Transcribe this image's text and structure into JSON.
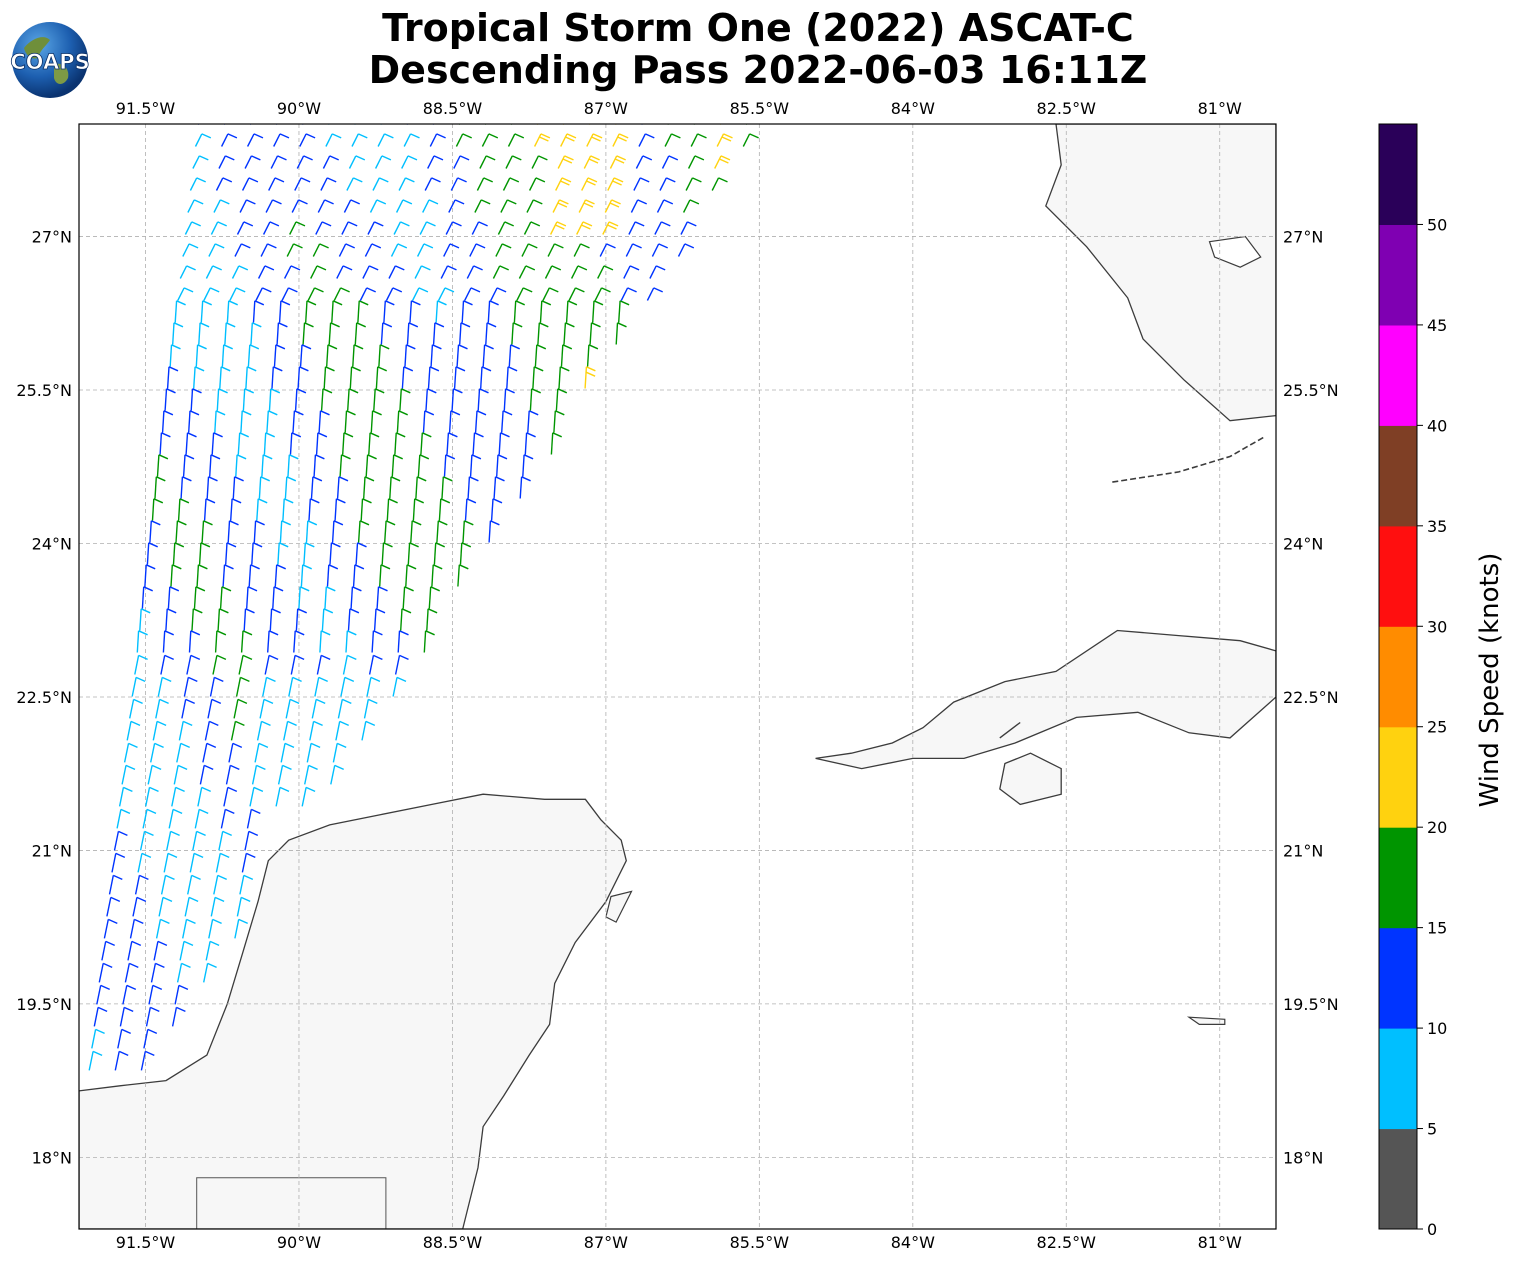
{
  "title": {
    "line1": "Tropical Storm One (2022) ASCAT-C",
    "line2": "Descending Pass 2022-06-03 16:11Z"
  },
  "logo": {
    "text": "COAPS",
    "icon": "globe-icon"
  },
  "map": {
    "type": "wind-barb-map",
    "extent": {
      "lon_min": -92.15,
      "lon_max": -80.45,
      "lat_min": 17.3,
      "lat_max": 28.1
    },
    "lon_ticks": [
      {
        "value": -91.5,
        "label": "91.5°W"
      },
      {
        "value": -90.0,
        "label": "90°W"
      },
      {
        "value": -88.5,
        "label": "88.5°W"
      },
      {
        "value": -87.0,
        "label": "87°W"
      },
      {
        "value": -85.5,
        "label": "85.5°W"
      },
      {
        "value": -84.0,
        "label": "84°W"
      },
      {
        "value": -82.5,
        "label": "82.5°W"
      },
      {
        "value": -81.0,
        "label": "81°W"
      }
    ],
    "lat_ticks": [
      {
        "value": 27.0,
        "label": "27°N"
      },
      {
        "value": 25.5,
        "label": "25.5°N"
      },
      {
        "value": 24.0,
        "label": "24°N"
      },
      {
        "value": 22.5,
        "label": "22.5°N"
      },
      {
        "value": 21.0,
        "label": "21°N"
      },
      {
        "value": 19.5,
        "label": "19.5°N"
      },
      {
        "value": 18.0,
        "label": "18°N"
      }
    ],
    "grid": true,
    "swath": {
      "columns": 22,
      "rows": 44,
      "note_free": true
    }
  },
  "colorbar": {
    "label": "Wind Speed (knots)",
    "min": 0,
    "max": 55,
    "bins": [
      {
        "from": 0,
        "to": 5,
        "color": "#555555"
      },
      {
        "from": 5,
        "to": 10,
        "color": "#00bfff"
      },
      {
        "from": 10,
        "to": 15,
        "color": "#0034ff"
      },
      {
        "from": 15,
        "to": 20,
        "color": "#009500"
      },
      {
        "from": 20,
        "to": 25,
        "color": "#ffd20f"
      },
      {
        "from": 25,
        "to": 30,
        "color": "#ff8c00"
      },
      {
        "from": 30,
        "to": 35,
        "color": "#ff0f0f"
      },
      {
        "from": 35,
        "to": 40,
        "color": "#7f3f25"
      },
      {
        "from": 40,
        "to": 45,
        "color": "#ff00ff"
      },
      {
        "from": 45,
        "to": 50,
        "color": "#7f00b2"
      },
      {
        "from": 50,
        "to": 55,
        "color": "#2a0059"
      }
    ],
    "ticks": [
      "0",
      "5",
      "10",
      "15",
      "20",
      "25",
      "30",
      "35",
      "40",
      "45",
      "50"
    ]
  }
}
